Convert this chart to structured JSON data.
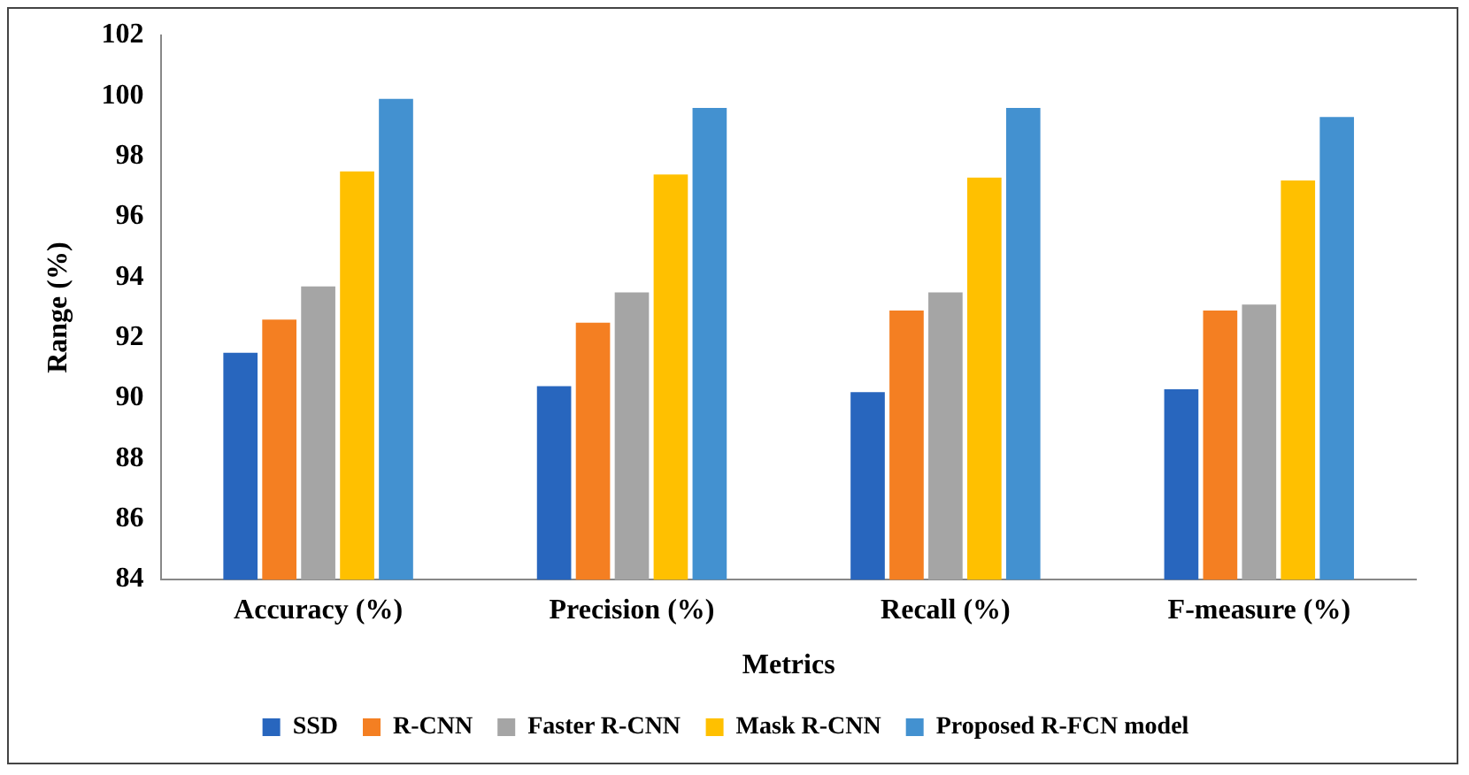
{
  "chart_data": {
    "type": "bar",
    "xlabel": "Metrics",
    "ylabel": "Range (%)",
    "categories": [
      "Accuracy (%)",
      "Precision (%)",
      "Recall (%)",
      "F-measure (%)"
    ],
    "series": [
      {
        "name": "SSD",
        "color": "#2866be",
        "values": [
          91.5,
          90.4,
          90.2,
          90.3
        ]
      },
      {
        "name": "R-CNN",
        "color": "#f47f22",
        "values": [
          92.6,
          92.5,
          92.9,
          92.9
        ]
      },
      {
        "name": "Faster R-CNN",
        "color": "#a5a5a5",
        "values": [
          93.7,
          93.5,
          93.5,
          93.1
        ]
      },
      {
        "name": "Mask R-CNN",
        "color": "#ffc000",
        "values": [
          97.5,
          97.4,
          97.3,
          97.2
        ]
      },
      {
        "name": "Proposed R-FCN model",
        "color": "#4391d0",
        "values": [
          99.9,
          99.6,
          99.6,
          99.3
        ]
      }
    ],
    "ylim": [
      84,
      102
    ],
    "yticks": [
      84,
      86,
      88,
      90,
      92,
      94,
      96,
      98,
      100,
      102
    ],
    "grid": false,
    "legend": "bottom"
  }
}
